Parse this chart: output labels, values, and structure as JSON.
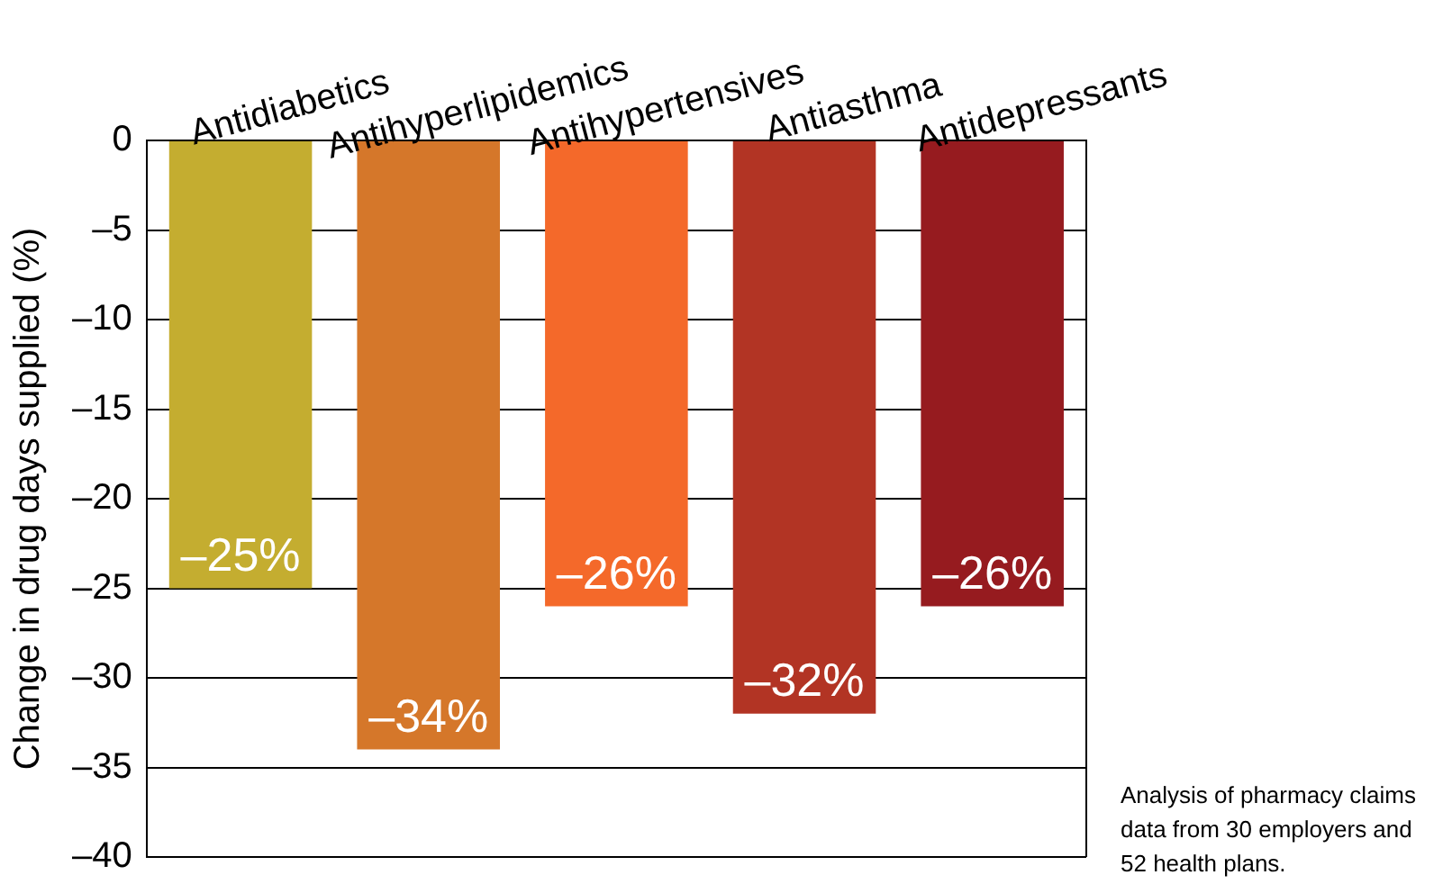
{
  "chart_data": {
    "type": "bar",
    "ylabel": "Change in drug days supplied (%)",
    "categories": [
      "Antidiabetics",
      "Antihyperlipidemics",
      "Antihypertensives",
      "Antiasthma",
      "Antidepressants"
    ],
    "values": [
      -25,
      -34,
      -26,
      -32,
      -26
    ],
    "value_labels": [
      "–25%",
      "–34%",
      "–26%",
      "–32%",
      "–26%"
    ],
    "colors": [
      "#c4ad30",
      "#d5772a",
      "#f4692a",
      "#b23424",
      "#961b1f"
    ],
    "ylim": [
      -40,
      0
    ],
    "yticks": [
      0,
      {
        "value": -5,
        "label": "–5"
      },
      {
        "value": -10,
        "label": "–10"
      },
      {
        "value": -15,
        "label": "–15"
      },
      {
        "value": -20,
        "label": "–20"
      },
      {
        "value": -25,
        "label": "–25"
      },
      {
        "value": -30,
        "label": "–30"
      },
      {
        "value": -35,
        "label": "–35"
      },
      {
        "value": -40,
        "label": "–40"
      }
    ],
    "grid": "y",
    "annotations": [
      "Analysis of pharmacy claims data from 30 employers and 52 health plans."
    ]
  }
}
